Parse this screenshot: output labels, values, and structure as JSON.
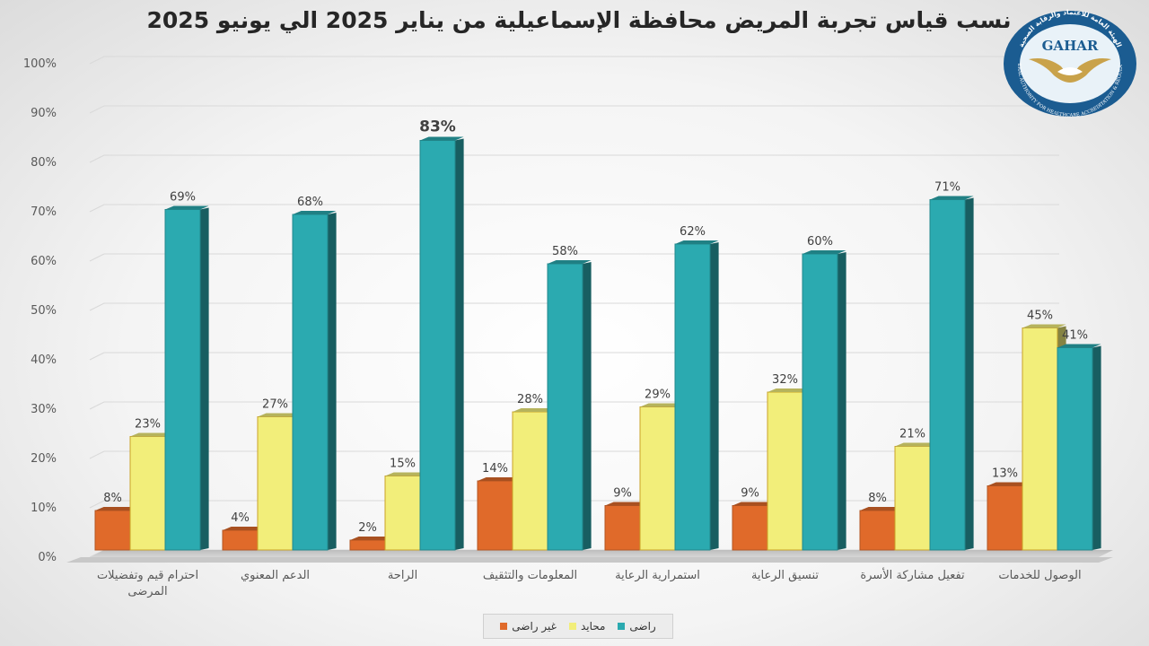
{
  "chart_data": {
    "type": "bar",
    "title": "نسب قياس تجربة المريض محافظة الإسماعيلية من يناير 2025 الي يونيو 2025",
    "categories": [
      "احترام قيم وتفضيلات المرضى",
      "الدعم المعنوي",
      "الراحة",
      "المعلومات والتثقيف",
      "استمرارية الرعاية",
      "تنسيق الرعاية",
      "تفعيل مشاركة الأسرة",
      "الوصول للخدمات"
    ],
    "series": [
      {
        "name": "غير راضى",
        "color": "#E06A2A",
        "values": [
          8,
          4,
          2,
          14,
          9,
          9,
          8,
          13
        ]
      },
      {
        "name": "محايد",
        "color": "#F2EE7A",
        "values": [
          23,
          27,
          15,
          28,
          29,
          32,
          21,
          45
        ]
      },
      {
        "name": "راضى",
        "color": "#2BAAB0",
        "values": [
          69,
          68,
          83,
          58,
          62,
          60,
          71,
          41
        ]
      }
    ],
    "y_ticks": [
      "0%",
      "10%",
      "20%",
      "30%",
      "40%",
      "50%",
      "60%",
      "70%",
      "80%",
      "90%",
      "100%"
    ],
    "ylim": [
      0,
      100
    ],
    "unit": "%",
    "grid": true,
    "legend": "bottom"
  },
  "logo": {
    "name": "GAHAR",
    "text_arabic": "الهيئة العامة للاعتماد والرقابة الصحية",
    "text_english": "GENERAL AUTHORITY FOR HEALTHCARE ACCREDITATION & REGULATION"
  }
}
